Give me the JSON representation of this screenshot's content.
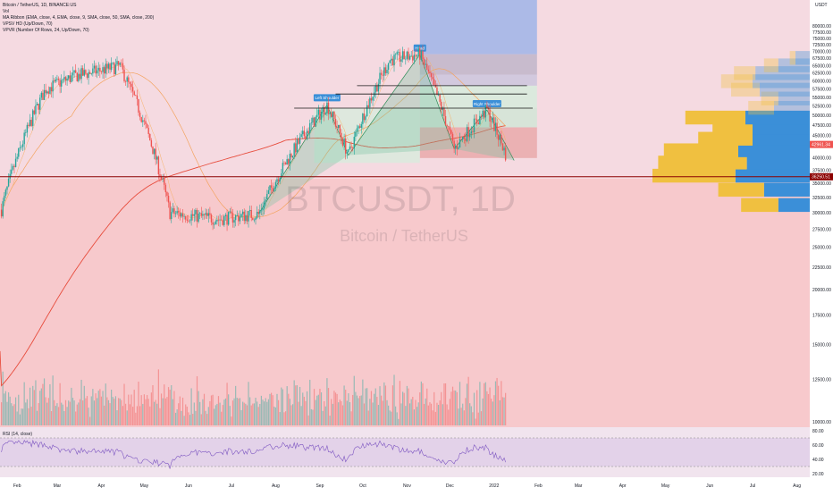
{
  "legend": {
    "symbol": "Bitcoin / TetherUS, 1D, BINANCE:US",
    "vol": "Vol",
    "ribbon": "MA Ribbon (EMA, close, 4, EMA, close, 9, SMA, close, 50, SMA, close, 200)",
    "vpsv": "VPSV HD (Up/Down, 70)",
    "vpvr": "VPVR (Number Of Rows, 24, Up/Down, 70)"
  },
  "rsi_label": "RSI (14, close)",
  "watermark": {
    "ticker": "BTCUSDT, 1D",
    "name": "Bitcoin / TetherUS"
  },
  "price_axis": {
    "currency": "USDT",
    "ticks": [
      "80000.00",
      "77500.00",
      "75000.00",
      "72500.00",
      "70000.00",
      "67500.00",
      "65000.00",
      "62500.00",
      "60000.00",
      "57500.00",
      "55000.00",
      "52500.00",
      "50000.00",
      "47500.00",
      "45000.00",
      "42500.00",
      "40000.00",
      "37500.00",
      "35000.00",
      "32500.00",
      "30000.00",
      "27500.00",
      "25000.00",
      "22500.00",
      "20000.00",
      "17500.00",
      "15000.00",
      "12500.00",
      "10000.00"
    ],
    "last_price": "42961.34",
    "line_price": "36250.51"
  },
  "rsi_axis": {
    "ticks": [
      "80.00",
      "60.00",
      "40.00",
      "20.00"
    ]
  },
  "time_axis": [
    "Feb",
    "Mar",
    "Apr",
    "May",
    "Jun",
    "Jul",
    "Aug",
    "Sep",
    "Oct",
    "Nov",
    "Dec",
    "2022",
    "Feb",
    "Mar",
    "Apr",
    "May",
    "Jun",
    "Jul",
    "Aug"
  ],
  "pattern": {
    "head": "Head",
    "left_shoulder": "Left Shoulder",
    "right_shoulder": "Right Shoulder"
  },
  "colors": {
    "background_pink": "#f7c9cc",
    "background_green": "#d5ecdc",
    "up": "#26a69a",
    "down": "#ef5350",
    "ema_200": "#e74c3c",
    "sma_50": "#f4a460",
    "vp_up": "#f0c040",
    "vp_down": "#3b8fd8",
    "fib_blue": "#9fb4e8",
    "horizontal_line": "#8b0000"
  },
  "chart_data": {
    "type": "candlestick",
    "title": "Bitcoin / TetherUS, 1D, BINANCE:US",
    "xlabel": "",
    "ylabel": "USDT",
    "x_range": [
      "2021-01-20",
      "2022-08-10"
    ],
    "ylim": [
      10000,
      82000
    ],
    "y_scale": "log",
    "grid": false,
    "key_price_points": [
      {
        "date": "2021-01-21",
        "price": 30500
      },
      {
        "date": "2021-02-21",
        "price": 57500
      },
      {
        "date": "2021-03-13",
        "price": 61500
      },
      {
        "date": "2021-04-14",
        "price": 64800
      },
      {
        "date": "2021-05-19",
        "price": 30000
      },
      {
        "date": "2021-06-22",
        "price": 29000
      },
      {
        "date": "2021-07-20",
        "price": 29800
      },
      {
        "date": "2021-09-06",
        "price": 52900
      },
      {
        "date": "2021-09-21",
        "price": 40600
      },
      {
        "date": "2021-10-20",
        "price": 67000
      },
      {
        "date": "2021-11-10",
        "price": 69000
      },
      {
        "date": "2021-12-04",
        "price": 42000
      },
      {
        "date": "2021-12-27",
        "price": 51500
      },
      {
        "date": "2022-01-10",
        "price": 40000
      }
    ],
    "horizontal_levels": [
      {
        "price": 58500
      },
      {
        "price": 56000
      },
      {
        "price": 52000
      },
      {
        "price": 36250.51
      }
    ],
    "volume_profile": {
      "rows_price_low": [
        30000,
        32500,
        35000,
        37500,
        40000,
        42500,
        45000,
        47500,
        50000,
        52500,
        55000,
        57500,
        60000,
        62500,
        65000
      ],
      "up_relative": [
        0.26,
        0.32,
        0.58,
        0.62,
        0.52,
        0.38,
        0.28,
        0.42,
        0.18,
        0.12,
        0.2,
        0.22,
        0.15,
        0.1,
        0.04
      ],
      "down_relative": [
        0.22,
        0.32,
        0.52,
        0.44,
        0.5,
        0.4,
        0.4,
        0.45,
        0.25,
        0.22,
        0.35,
        0.4,
        0.38,
        0.22,
        0.1
      ]
    },
    "rsi": {
      "period": 14,
      "ylim": [
        20,
        80
      ],
      "overbought": 70,
      "oversold": 30
    }
  }
}
